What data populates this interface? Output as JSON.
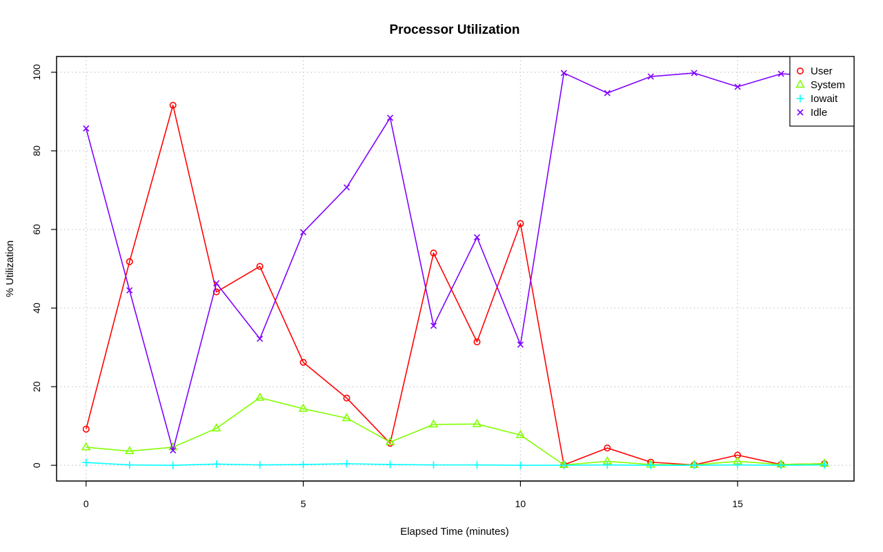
{
  "chart_data": {
    "type": "line",
    "title": "Processor Utilization",
    "xlabel": "Elapsed Time (minutes)",
    "ylabel": "% Utilization",
    "x": [
      0,
      1,
      2,
      3,
      4,
      5,
      6,
      7,
      8,
      9,
      10,
      11,
      12,
      13,
      14,
      15,
      16,
      17
    ],
    "xlim": [
      -0.68,
      17.68
    ],
    "ylim": [
      -4,
      104
    ],
    "x_ticks": [
      "0",
      "5",
      "10",
      "15"
    ],
    "y_ticks": [
      "0",
      "20",
      "40",
      "60",
      "80",
      "100"
    ],
    "grid": true,
    "legend_position": "top-right",
    "series": [
      {
        "name": "User",
        "color": "#ff0000",
        "marker": "circle",
        "values": [
          9.2,
          51.8,
          91.6,
          44.1,
          50.6,
          26.2,
          17.1,
          5.6,
          54.0,
          31.4,
          61.5,
          0.1,
          4.4,
          0.8,
          0.1,
          2.6,
          0.2,
          0.4
        ]
      },
      {
        "name": "System",
        "color": "#80ff00",
        "marker": "triangle",
        "values": [
          4.6,
          3.6,
          4.6,
          9.4,
          17.2,
          14.4,
          12.0,
          5.9,
          10.4,
          10.5,
          7.7,
          0.1,
          1.0,
          0.2,
          0.1,
          1.0,
          0.2,
          0.4
        ]
      },
      {
        "name": "Iowait",
        "color": "#00ffff",
        "marker": "plus",
        "values": [
          0.7,
          0.1,
          0.0,
          0.3,
          0.1,
          0.2,
          0.4,
          0.2,
          0.1,
          0.1,
          0.0,
          0.0,
          0.1,
          0.0,
          0.0,
          0.1,
          0.0,
          0.1
        ]
      },
      {
        "name": "Idle",
        "color": "#8000ff",
        "marker": "x",
        "values": [
          85.7,
          44.5,
          3.8,
          46.3,
          32.2,
          59.3,
          70.7,
          88.4,
          35.5,
          58.0,
          30.7,
          99.8,
          94.7,
          98.9,
          99.8,
          96.3,
          99.6,
          99.0
        ]
      }
    ]
  }
}
